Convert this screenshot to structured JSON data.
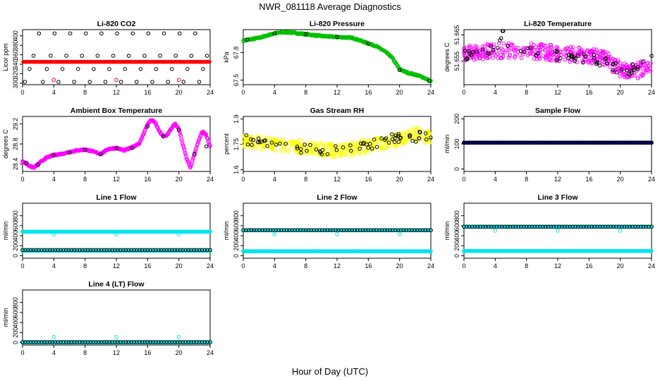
{
  "figure": {
    "title": "NWR_081118  Average Diagnostics",
    "xlabel": "Hour of Day (UTC)"
  },
  "colors": {
    "black": "#000000",
    "red": "#ff0000",
    "green": "#00c000",
    "magenta": "#ff00ff",
    "yellow": "#ffff00",
    "navy": "#000080",
    "cyan": "#00e5ee"
  },
  "chart_data": [
    {
      "id": "co2",
      "type": "scatter",
      "title": "Li-820 CO2",
      "ylabel": "Licor ppm",
      "xlim": [
        0,
        24
      ],
      "ylim": [
        297,
        413
      ],
      "xticks": [
        0,
        4,
        8,
        12,
        16,
        20,
        24
      ],
      "yticks": [
        300,
        320,
        340,
        360,
        380,
        400
      ],
      "series": [
        {
          "name": "averages",
          "color": "#ff0000",
          "marker": "filled",
          "y": [
            345,
            345,
            345,
            345,
            345,
            345,
            345,
            345,
            345,
            345,
            345,
            345,
            345,
            345,
            345,
            345,
            345,
            345,
            345,
            345,
            345,
            345,
            345,
            345,
            345,
            345,
            345,
            345,
            345,
            345,
            345,
            345,
            345,
            345,
            345,
            345,
            345,
            345,
            345,
            345,
            345,
            345,
            345,
            345,
            345,
            345,
            345,
            345,
            345,
            345,
            345,
            345,
            345,
            345,
            345,
            345,
            345,
            345,
            345,
            345,
            345,
            345,
            345,
            345,
            345,
            345,
            345,
            345,
            345,
            345,
            345,
            345,
            345,
            345,
            345,
            345,
            345,
            345,
            345,
            345,
            345,
            345,
            345,
            345,
            345,
            345,
            345,
            345,
            345,
            345,
            345,
            345,
            345,
            345,
            345,
            345,
            345,
            345,
            345,
            345,
            345,
            345,
            345,
            345,
            345,
            345,
            345,
            345,
            345,
            345,
            345,
            345,
            345,
            345,
            345,
            345,
            345,
            345,
            345,
            345
          ]
        },
        {
          "name": "standards",
          "color": "#000000",
          "marker": "open",
          "x": [
            0.3,
            0.9,
            1.4,
            2.1,
            2.6,
            3.1,
            3.6,
            4.1,
            4.6,
            5.1,
            5.6,
            6.1,
            6.6,
            7.1,
            7.6,
            8.1,
            8.6,
            9.1,
            9.6,
            10.1,
            10.6,
            11.1,
            11.6,
            12.1,
            12.6,
            13.1,
            13.6,
            14.1,
            14.6,
            15.1,
            15.6,
            16.1,
            16.6,
            17.1,
            17.6,
            18.1,
            18.6,
            19.1,
            19.6,
            20.1,
            20.6,
            21.1,
            21.6,
            22.1,
            22.6,
            23.1,
            23.6
          ],
          "y": [
            303,
            330,
            358,
            405,
            303,
            330,
            358,
            405,
            303,
            330,
            358,
            405,
            303,
            330,
            358,
            405,
            303,
            330,
            358,
            405,
            303,
            330,
            358,
            405,
            303,
            330,
            358,
            405,
            303,
            330,
            358,
            405,
            303,
            330,
            358,
            405,
            303,
            330,
            358,
            405,
            303,
            330,
            358,
            405,
            303,
            330,
            358
          ]
        },
        {
          "name": "outliers",
          "color": "#ff0000",
          "marker": "open",
          "x": [
            4,
            12,
            20
          ],
          "y": [
            307,
            307,
            307
          ]
        }
      ]
    },
    {
      "id": "pressure",
      "type": "scatter",
      "title": "Li-820 Pressure",
      "ylabel": "kPa",
      "xlim": [
        0,
        24
      ],
      "ylim": [
        67.45,
        68.05
      ],
      "xticks": [
        0,
        4,
        8,
        12,
        16,
        20,
        24
      ],
      "yticks": [
        67.5,
        67.8
      ],
      "series": [
        {
          "name": "averages",
          "color": "#00c000",
          "marker": "open",
          "x": [
            0,
            2,
            4,
            5,
            6,
            8,
            10,
            12,
            14,
            16,
            17,
            18,
            19,
            20,
            21,
            22,
            23,
            24
          ],
          "y": [
            67.93,
            67.96,
            68.01,
            68.02,
            68.02,
            68.0,
            67.98,
            67.97,
            67.96,
            67.9,
            67.87,
            67.82,
            67.75,
            67.62,
            67.58,
            67.56,
            67.53,
            67.49
          ]
        },
        {
          "name": "standards",
          "color": "#000000",
          "marker": "open",
          "x": [
            0.5,
            4,
            8,
            12,
            16,
            20,
            23.8
          ],
          "y": [
            67.94,
            68.01,
            68.0,
            67.97,
            67.9,
            67.61,
            67.49
          ]
        }
      ]
    },
    {
      "id": "licor_temp",
      "type": "scatter",
      "title": "Li-820 Temperature",
      "ylabel": "degrees C",
      "xlim": [
        0,
        24
      ],
      "ylim": [
        51.646,
        51.667
      ],
      "xticks": [
        0,
        4,
        8,
        12,
        16,
        20,
        24
      ],
      "yticks": [
        51.655,
        51.665
      ],
      "series": [
        {
          "name": "averages",
          "color": "#ff00ff",
          "marker": "open",
          "x": [
            0,
            4,
            8,
            12,
            16,
            18,
            20,
            22,
            24
          ],
          "y": [
            51.658,
            51.659,
            51.659,
            51.658,
            51.657,
            51.656,
            51.652,
            51.651,
            51.654
          ],
          "noise": 0.003
        },
        {
          "name": "standards",
          "color": "#000000",
          "marker": "open",
          "x": [
            0,
            2,
            4,
            5,
            6,
            8,
            10,
            12,
            14,
            16,
            18,
            20,
            22,
            24
          ],
          "y": [
            51.657,
            51.658,
            51.659,
            51.666,
            51.659,
            51.659,
            51.658,
            51.657,
            51.657,
            51.656,
            51.655,
            51.651,
            51.652,
            51.655
          ],
          "noise": 0.002
        }
      ]
    },
    {
      "id": "ambient_temp",
      "type": "scatter",
      "title": "Ambient Box Temperature",
      "ylabel": "degrees C",
      "xlim": [
        0,
        24
      ],
      "ylim": [
        28.25,
        29.35
      ],
      "xticks": [
        0,
        4,
        8,
        12,
        16,
        20,
        24
      ],
      "yticks": [
        28.4,
        28.8,
        29.2
      ],
      "series": [
        {
          "name": "averages",
          "color": "#ff00ff",
          "marker": "open",
          "x": [
            0,
            1,
            1.5,
            2,
            3,
            4,
            5,
            6,
            7,
            8,
            9,
            10,
            11,
            12,
            13,
            14,
            15,
            16,
            16.5,
            17,
            17.5,
            18,
            18.5,
            19,
            19.5,
            20,
            20.5,
            21,
            21.5,
            22,
            22.5,
            23,
            23.5,
            24
          ],
          "y": [
            28.45,
            28.35,
            28.33,
            28.4,
            28.52,
            28.58,
            28.6,
            28.64,
            28.67,
            28.69,
            28.65,
            28.6,
            28.7,
            28.72,
            28.67,
            28.73,
            28.82,
            29.2,
            29.28,
            29.22,
            29.05,
            28.95,
            28.98,
            29.1,
            29.2,
            29.1,
            28.8,
            28.5,
            28.32,
            28.6,
            28.85,
            29.05,
            28.98,
            28.75
          ]
        },
        {
          "name": "standards",
          "color": "#000000",
          "marker": "open",
          "x": [
            0.5,
            2,
            4,
            6,
            8,
            10,
            12,
            14,
            16,
            18,
            20,
            22,
            23.5
          ],
          "y": [
            28.42,
            28.38,
            28.57,
            28.63,
            28.68,
            28.6,
            28.71,
            28.72,
            29.15,
            28.95,
            29.08,
            28.6,
            28.75
          ]
        }
      ]
    },
    {
      "id": "rh",
      "type": "scatter",
      "title": "Gas Stream RH",
      "ylabel": "percent",
      "xlim": [
        0,
        24
      ],
      "ylim": [
        1.59,
        1.915
      ],
      "xticks": [
        0,
        4,
        8,
        12,
        16,
        20,
        24
      ],
      "yticks": [
        1.6,
        1.75,
        1.9
      ],
      "series": [
        {
          "name": "averages",
          "color": "#ffff00",
          "marker": "open",
          "x": [
            0,
            4,
            8,
            12,
            16,
            20,
            22,
            24
          ],
          "y": [
            1.77,
            1.75,
            1.73,
            1.71,
            1.74,
            1.78,
            1.81,
            1.79
          ],
          "noise": 0.04
        },
        {
          "name": "standards",
          "color": "#000000",
          "marker": "open",
          "x": [
            0,
            4,
            8,
            12,
            16,
            20,
            24
          ],
          "y": [
            1.78,
            1.76,
            1.72,
            1.72,
            1.75,
            1.79,
            1.8
          ],
          "noise": 0.03
        }
      ]
    },
    {
      "id": "sample_flow",
      "type": "scatter",
      "title": "Sample Flow",
      "ylabel": "ml/min",
      "xlim": [
        0,
        24
      ],
      "ylim": [
        -10,
        210
      ],
      "xticks": [
        0,
        4,
        8,
        12,
        16,
        20,
        24
      ],
      "yticks": [
        0,
        100,
        200
      ],
      "series": [
        {
          "name": "averages",
          "color": "#000080",
          "marker": "filled",
          "x": [
            0,
            24
          ],
          "y": [
            105,
            105
          ]
        },
        {
          "name": "standards",
          "color": "#000000",
          "marker": "open",
          "x": [
            0,
            24
          ],
          "y": [
            105,
            105
          ]
        }
      ]
    },
    {
      "id": "line1",
      "type": "scatter",
      "title": "Line 1 Flow",
      "ylabel": "ml/min",
      "xlim": [
        0,
        24
      ],
      "ylim": [
        -50,
        1050
      ],
      "xticks": [
        0,
        4,
        8,
        12,
        16,
        20,
        24
      ],
      "yticks": [
        0,
        200,
        400,
        600,
        800
      ],
      "series": [
        {
          "name": "upper",
          "color": "#00e5ee",
          "marker": "filled",
          "x": [
            0,
            24
          ],
          "y": [
            480,
            480
          ]
        },
        {
          "name": "lower",
          "color": "#00e5ee",
          "marker": "filled",
          "x": [
            0,
            24
          ],
          "y": [
            100,
            100
          ]
        },
        {
          "name": "standards",
          "color": "#000000",
          "marker": "open",
          "x": [
            0,
            24
          ],
          "y": [
            115,
            115
          ]
        },
        {
          "name": "dips",
          "color": "#00e5ee",
          "marker": "open",
          "x": [
            4,
            12,
            20
          ],
          "y": [
            430,
            430,
            430
          ]
        }
      ]
    },
    {
      "id": "line2",
      "type": "scatter",
      "title": "Line 2 Flow",
      "ylabel": "ml/min",
      "xlim": [
        0,
        24
      ],
      "ylim": [
        -50,
        1050
      ],
      "xticks": [
        0,
        4,
        8,
        12,
        16,
        20,
        24
      ],
      "yticks": [
        0,
        200,
        400,
        600,
        800
      ],
      "series": [
        {
          "name": "upper",
          "color": "#00e5ee",
          "marker": "filled",
          "x": [
            0,
            24
          ],
          "y": [
            510,
            510
          ]
        },
        {
          "name": "lower",
          "color": "#00e5ee",
          "marker": "filled",
          "x": [
            0,
            24
          ],
          "y": [
            90,
            90
          ]
        },
        {
          "name": "standards",
          "color": "#000000",
          "marker": "open",
          "x": [
            0,
            24
          ],
          "y": [
            510,
            510
          ]
        },
        {
          "name": "dips",
          "color": "#00e5ee",
          "marker": "open",
          "x": [
            4,
            12,
            20
          ],
          "y": [
            430,
            430,
            430
          ]
        }
      ]
    },
    {
      "id": "line3",
      "type": "scatter",
      "title": "Line 3 Flow",
      "ylabel": "ml/min",
      "xlim": [
        0,
        24
      ],
      "ylim": [
        -50,
        1050
      ],
      "xticks": [
        0,
        4,
        8,
        12,
        16,
        20,
        24
      ],
      "yticks": [
        0,
        200,
        400,
        600,
        800
      ],
      "series": [
        {
          "name": "upper",
          "color": "#00e5ee",
          "marker": "filled",
          "x": [
            0,
            24
          ],
          "y": [
            580,
            580
          ]
        },
        {
          "name": "lower",
          "color": "#00e5ee",
          "marker": "filled",
          "x": [
            0,
            24
          ],
          "y": [
            95,
            95
          ]
        },
        {
          "name": "standards",
          "color": "#000000",
          "marker": "open",
          "x": [
            0,
            24
          ],
          "y": [
            580,
            580
          ]
        },
        {
          "name": "dips",
          "color": "#00e5ee",
          "marker": "open",
          "x": [
            4,
            12,
            20
          ],
          "y": [
            500,
            500,
            500
          ]
        }
      ]
    },
    {
      "id": "line4",
      "type": "scatter",
      "title": "Line 4 (LT) Flow",
      "ylabel": "ml/min",
      "xlim": [
        0,
        24
      ],
      "ylim": [
        -50,
        1050
      ],
      "xticks": [
        0,
        4,
        8,
        12,
        16,
        20,
        24
      ],
      "yticks": [
        0,
        200,
        400,
        600,
        800
      ],
      "series": [
        {
          "name": "averages",
          "color": "#00e5ee",
          "marker": "filled",
          "x": [
            0,
            24
          ],
          "y": [
            5,
            5
          ]
        },
        {
          "name": "standards",
          "color": "#000000",
          "marker": "open",
          "x": [
            0,
            24
          ],
          "y": [
            8,
            8
          ]
        },
        {
          "name": "spikes",
          "color": "#00e5ee",
          "marker": "open",
          "x": [
            4,
            12,
            20
          ],
          "y": [
            110,
            110,
            110
          ]
        }
      ]
    }
  ]
}
